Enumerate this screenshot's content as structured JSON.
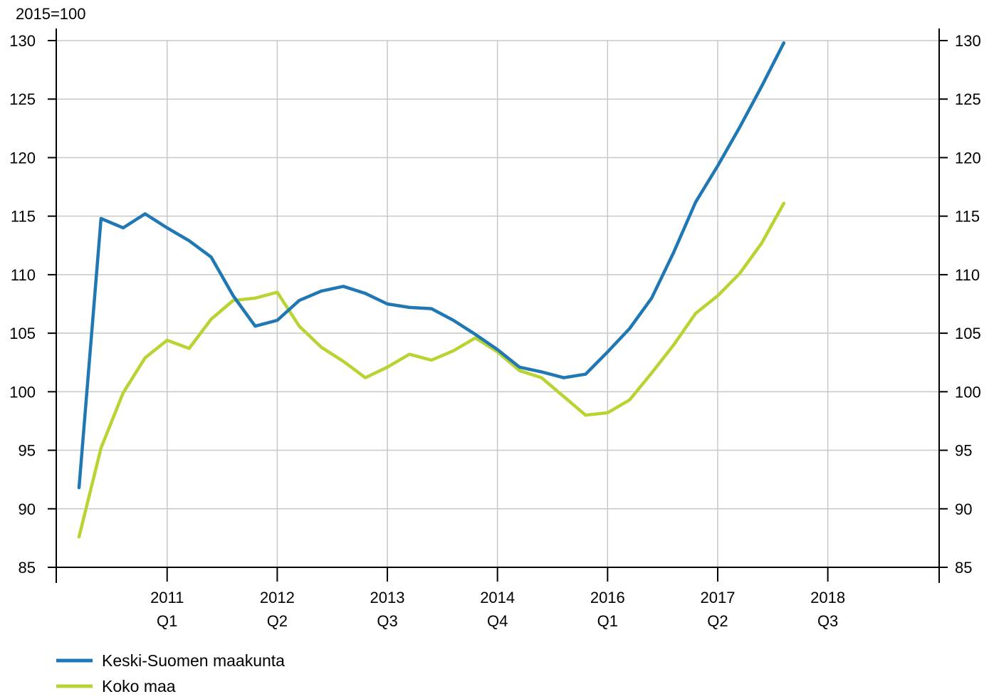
{
  "chart_data": {
    "type": "line",
    "unit_label": "2015=100",
    "ylim": [
      85,
      130
    ],
    "yticks": [
      85,
      90,
      95,
      100,
      105,
      110,
      115,
      120,
      125,
      130
    ],
    "xticks": [
      {
        "year": "2011",
        "quarter": "Q1"
      },
      {
        "year": "2012",
        "quarter": "Q2"
      },
      {
        "year": "2013",
        "quarter": "Q3"
      },
      {
        "year": "2014",
        "quarter": "Q4"
      },
      {
        "year": "2016",
        "quarter": "Q1"
      },
      {
        "year": "2017",
        "quarter": "Q2"
      },
      {
        "year": "2018",
        "quarter": "Q3"
      }
    ],
    "x": [
      "2010Q1",
      "2010Q2",
      "2010Q3",
      "2010Q4",
      "2011Q1",
      "2011Q2",
      "2011Q3",
      "2011Q4",
      "2012Q1",
      "2012Q2",
      "2012Q3",
      "2012Q4",
      "2013Q1",
      "2013Q2",
      "2013Q3",
      "2013Q4",
      "2014Q1",
      "2014Q2",
      "2014Q3",
      "2014Q4",
      "2015Q1",
      "2015Q2",
      "2015Q3",
      "2015Q4",
      "2016Q1",
      "2016Q2",
      "2016Q3",
      "2016Q4",
      "2017Q1",
      "2017Q2",
      "2017Q3",
      "2017Q4",
      "2018Q1"
    ],
    "grid": true,
    "legend_position": "bottom-left",
    "series": [
      {
        "name": "Keski-Suomen maakunta",
        "color": "#1f78b4",
        "values": [
          91.8,
          114.8,
          114.0,
          115.2,
          114.0,
          112.9,
          111.5,
          108.2,
          105.6,
          106.1,
          107.8,
          108.6,
          109.0,
          108.4,
          107.5,
          107.2,
          107.1,
          106.1,
          104.9,
          103.6,
          102.1,
          101.7,
          101.2,
          101.5,
          103.4,
          105.4,
          108.0,
          111.9,
          116.2,
          119.3,
          122.6,
          126.1,
          129.8
        ]
      },
      {
        "name": "Koko maa",
        "color": "#b7d433",
        "values": [
          87.6,
          95.2,
          99.9,
          102.9,
          104.4,
          103.7,
          106.2,
          107.8,
          108.0,
          108.5,
          105.6,
          103.8,
          102.6,
          101.2,
          102.1,
          103.2,
          102.7,
          103.5,
          104.6,
          103.4,
          101.8,
          101.2,
          99.6,
          98.0,
          98.2,
          99.3,
          101.6,
          104.0,
          106.7,
          108.2,
          110.1,
          112.7,
          116.1
        ]
      }
    ]
  }
}
